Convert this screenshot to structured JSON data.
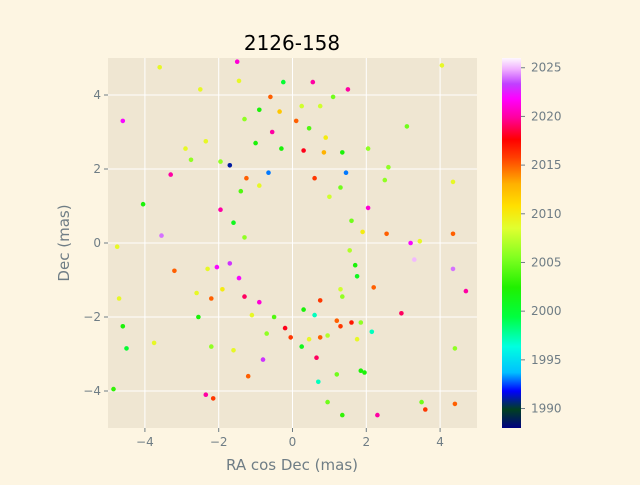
{
  "chart_data": {
    "type": "scatter",
    "title": "2126-158",
    "xlabel": "RA cos Dec (mas)",
    "ylabel": "Dec (mas)",
    "xlim": [
      -5,
      5
    ],
    "ylim": [
      -5,
      5
    ],
    "xticks": [
      -4,
      -2,
      0,
      2,
      4
    ],
    "yticks": [
      -4,
      -2,
      0,
      2,
      4
    ],
    "grid": true,
    "colorbar": {
      "label": "",
      "colormap": "gist_ncar",
      "range": [
        1988,
        2026
      ],
      "ticks": [
        1990,
        1995,
        2000,
        2005,
        2010,
        2015,
        2020,
        2025
      ]
    },
    "points": [
      {
        "x": -3.6,
        "y": 4.75,
        "t": 2009
      },
      {
        "x": -1.5,
        "y": 4.9,
        "t": 2021
      },
      {
        "x": 4.05,
        "y": 4.8,
        "t": 2009
      },
      {
        "x": -2.5,
        "y": 4.15,
        "t": 2009
      },
      {
        "x": -1.45,
        "y": 4.38,
        "t": 2009
      },
      {
        "x": -0.6,
        "y": 3.95,
        "t": 2015
      },
      {
        "x": -0.25,
        "y": 4.35,
        "t": 2000
      },
      {
        "x": 0.55,
        "y": 4.35,
        "t": 2020
      },
      {
        "x": 1.5,
        "y": 4.15,
        "t": 2020
      },
      {
        "x": 1.1,
        "y": 3.95,
        "t": 2005
      },
      {
        "x": -4.6,
        "y": 3.3,
        "t": 2022
      },
      {
        "x": 3.1,
        "y": 3.15,
        "t": 2005
      },
      {
        "x": -2.9,
        "y": 2.55,
        "t": 2009
      },
      {
        "x": -2.35,
        "y": 2.75,
        "t": 2009
      },
      {
        "x": -3.3,
        "y": 1.85,
        "t": 2020
      },
      {
        "x": -1.7,
        "y": 2.1,
        "t": 1991
      },
      {
        "x": -1.95,
        "y": 2.2,
        "t": 2006
      },
      {
        "x": -2.75,
        "y": 2.25,
        "t": 2006
      },
      {
        "x": 2.05,
        "y": 2.55,
        "t": 2006
      },
      {
        "x": 2.6,
        "y": 2.05,
        "t": 2006
      },
      {
        "x": 4.35,
        "y": 1.65,
        "t": 2009
      },
      {
        "x": -4.05,
        "y": 1.05,
        "t": 2002
      },
      {
        "x": -1.95,
        "y": 0.9,
        "t": 2020
      },
      {
        "x": 2.05,
        "y": 0.95,
        "t": 2021
      },
      {
        "x": 2.5,
        "y": 1.7,
        "t": 2006
      },
      {
        "x": -3.55,
        "y": 0.2,
        "t": 2024
      },
      {
        "x": -4.75,
        "y": -0.1,
        "t": 2009
      },
      {
        "x": 3.2,
        "y": 0.0,
        "t": 2022
      },
      {
        "x": 3.45,
        "y": 0.05,
        "t": 2009
      },
      {
        "x": 3.3,
        "y": -0.45,
        "t": 2025
      },
      {
        "x": 4.35,
        "y": 0.25,
        "t": 2015
      },
      {
        "x": 4.35,
        "y": -0.7,
        "t": 2024
      },
      {
        "x": 2.55,
        "y": 0.25,
        "t": 2015
      },
      {
        "x": -3.2,
        "y": -0.75,
        "t": 2015
      },
      {
        "x": -2.3,
        "y": -0.7,
        "t": 2009
      },
      {
        "x": -2.05,
        "y": -0.65,
        "t": 2022
      },
      {
        "x": 2.2,
        "y": -1.2,
        "t": 2015
      },
      {
        "x": 4.7,
        "y": -1.3,
        "t": 2020
      },
      {
        "x": -4.7,
        "y": -1.5,
        "t": 2009
      },
      {
        "x": -2.2,
        "y": -1.5,
        "t": 2015
      },
      {
        "x": -2.6,
        "y": -1.35,
        "t": 2009
      },
      {
        "x": -2.55,
        "y": -2.0,
        "t": 2002
      },
      {
        "x": -4.6,
        "y": -2.25,
        "t": 2002
      },
      {
        "x": -4.5,
        "y": -2.85,
        "t": 2000
      },
      {
        "x": -3.75,
        "y": -2.7,
        "t": 2009
      },
      {
        "x": -2.2,
        "y": -2.8,
        "t": 2006
      },
      {
        "x": 2.95,
        "y": -1.9,
        "t": 2019
      },
      {
        "x": 2.15,
        "y": -2.4,
        "t": 1997
      },
      {
        "x": 1.85,
        "y": -2.15,
        "t": 2006
      },
      {
        "x": 1.6,
        "y": -2.15,
        "t": 2017
      },
      {
        "x": 1.3,
        "y": -2.25,
        "t": 2016
      },
      {
        "x": 1.75,
        "y": -2.6,
        "t": 2009
      },
      {
        "x": 1.85,
        "y": -3.45,
        "t": 2002
      },
      {
        "x": 1.95,
        "y": -3.5,
        "t": 2002
      },
      {
        "x": 1.2,
        "y": -3.55,
        "t": 2005
      },
      {
        "x": 0.65,
        "y": -3.1,
        "t": 2019
      },
      {
        "x": 0.7,
        "y": -3.75,
        "t": 1997
      },
      {
        "x": -1.2,
        "y": -3.6,
        "t": 2015
      },
      {
        "x": -0.8,
        "y": -3.15,
        "t": 2023
      },
      {
        "x": -1.6,
        "y": -2.9,
        "t": 2009
      },
      {
        "x": -0.7,
        "y": -2.45,
        "t": 2006
      },
      {
        "x": -0.05,
        "y": -2.55,
        "t": 2016
      },
      {
        "x": 0.25,
        "y": -2.8,
        "t": 2001
      },
      {
        "x": 0.45,
        "y": -2.6,
        "t": 2009
      },
      {
        "x": 0.75,
        "y": -2.55,
        "t": 2015
      },
      {
        "x": -2.35,
        "y": -4.1,
        "t": 2020
      },
      {
        "x": -2.15,
        "y": -4.2,
        "t": 2016
      },
      {
        "x": 0.95,
        "y": -4.3,
        "t": 2005
      },
      {
        "x": 1.35,
        "y": -4.65,
        "t": 2003
      },
      {
        "x": 2.3,
        "y": -4.65,
        "t": 2020
      },
      {
        "x": 3.5,
        "y": -4.3,
        "t": 2005
      },
      {
        "x": 3.6,
        "y": -4.5,
        "t": 2016
      },
      {
        "x": 4.4,
        "y": -4.35,
        "t": 2015
      },
      {
        "x": 4.4,
        "y": -2.85,
        "t": 2006
      },
      {
        "x": -4.85,
        "y": -3.95,
        "t": 2003
      },
      {
        "x": -1.3,
        "y": 3.35,
        "t": 2006
      },
      {
        "x": -0.9,
        "y": 3.6,
        "t": 2002
      },
      {
        "x": -0.35,
        "y": 3.55,
        "t": 2012
      },
      {
        "x": 0.25,
        "y": 3.7,
        "t": 2008
      },
      {
        "x": 0.75,
        "y": 3.7,
        "t": 2008
      },
      {
        "x": -0.55,
        "y": 3.0,
        "t": 2020
      },
      {
        "x": 0.1,
        "y": 3.3,
        "t": 2015
      },
      {
        "x": 0.45,
        "y": 3.1,
        "t": 2004
      },
      {
        "x": 0.9,
        "y": 2.85,
        "t": 2010
      },
      {
        "x": -1.0,
        "y": 2.7,
        "t": 2002
      },
      {
        "x": -0.3,
        "y": 2.55,
        "t": 2002
      },
      {
        "x": 0.3,
        "y": 2.5,
        "t": 2018
      },
      {
        "x": 0.85,
        "y": 2.45,
        "t": 2013
      },
      {
        "x": 1.35,
        "y": 2.45,
        "t": 2002
      },
      {
        "x": -1.25,
        "y": 1.75,
        "t": 2015
      },
      {
        "x": -0.65,
        "y": 1.9,
        "t": 1993
      },
      {
        "x": 1.45,
        "y": 1.9,
        "t": 1993
      },
      {
        "x": 1.3,
        "y": 1.5,
        "t": 2005
      },
      {
        "x": -0.9,
        "y": 1.55,
        "t": 2009
      },
      {
        "x": 0.6,
        "y": 1.75,
        "t": 2016
      },
      {
        "x": -1.4,
        "y": 1.4,
        "t": 2004
      },
      {
        "x": 1.0,
        "y": 1.25,
        "t": 2008
      },
      {
        "x": -1.6,
        "y": 0.55,
        "t": 2001
      },
      {
        "x": -1.3,
        "y": 0.15,
        "t": 2006
      },
      {
        "x": 1.6,
        "y": 0.6,
        "t": 2005
      },
      {
        "x": 1.9,
        "y": 0.3,
        "t": 2010
      },
      {
        "x": 1.55,
        "y": -0.2,
        "t": 2007
      },
      {
        "x": -1.7,
        "y": -0.55,
        "t": 2023
      },
      {
        "x": -1.45,
        "y": -0.95,
        "t": 2022
      },
      {
        "x": 1.7,
        "y": -0.6,
        "t": 2002
      },
      {
        "x": 1.75,
        "y": -0.9,
        "t": 2001
      },
      {
        "x": -1.9,
        "y": -1.25,
        "t": 2010
      },
      {
        "x": -1.3,
        "y": -1.45,
        "t": 2019
      },
      {
        "x": 1.35,
        "y": -1.45,
        "t": 2006
      },
      {
        "x": -0.9,
        "y": -1.6,
        "t": 2021
      },
      {
        "x": 0.75,
        "y": -1.55,
        "t": 2016
      },
      {
        "x": -1.1,
        "y": -1.95,
        "t": 2009
      },
      {
        "x": 0.6,
        "y": -1.95,
        "t": 1997
      },
      {
        "x": 1.3,
        "y": -1.25,
        "t": 2008
      },
      {
        "x": -0.5,
        "y": -2.0,
        "t": 2004
      },
      {
        "x": 0.3,
        "y": -1.8,
        "t": 2002
      },
      {
        "x": -0.2,
        "y": -2.3,
        "t": 2018
      },
      {
        "x": 0.95,
        "y": -2.5,
        "t": 2007
      },
      {
        "x": 1.2,
        "y": -2.1,
        "t": 2015
      }
    ]
  }
}
